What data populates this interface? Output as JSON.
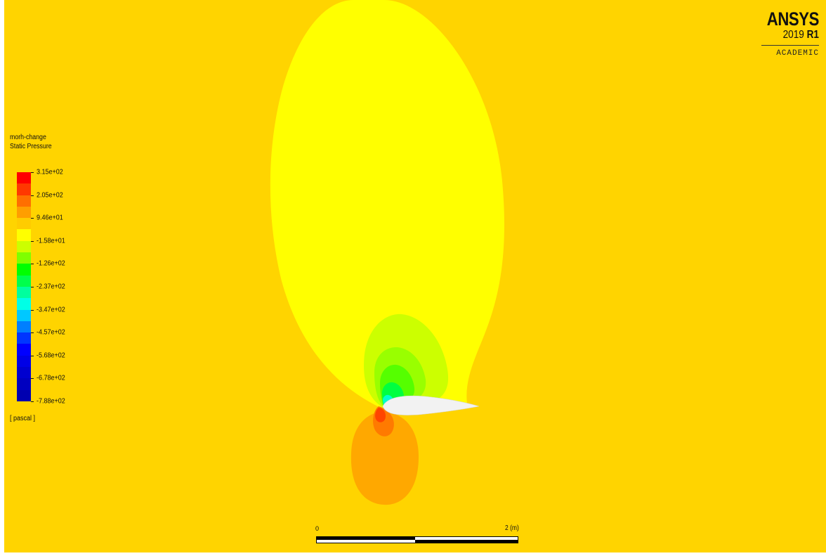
{
  "logo": {
    "brand": "ANSYS",
    "version_year": "2019",
    "version_release": "R1",
    "edition": "ACADEMIC"
  },
  "legend": {
    "case_name": "morh-change",
    "variable": "Static Pressure",
    "unit": "[ pascal ]",
    "labels": [
      "3.15e+02",
      "2.05e+02",
      "9.46e+01",
      "-1.58e+01",
      "-1.26e+02",
      "-2.37e+02",
      "-3.47e+02",
      "-4.57e+02",
      "-5.68e+02",
      "-6.78e+02",
      "-7.88e+02"
    ],
    "colors": [
      "#ff0000",
      "#ff3800",
      "#ff6f00",
      "#ff9e00",
      "#ffcc00",
      "#ffff00",
      "#ccff00",
      "#7fff00",
      "#00ff00",
      "#00ff4c",
      "#00ff9e",
      "#00ffe6",
      "#00c8ff",
      "#007fff",
      "#0036ff",
      "#0000ff",
      "#0000e6",
      "#0000d0",
      "#0000c0",
      "#0000b0"
    ]
  },
  "scale": {
    "zero_label": "0",
    "max_label": "2 (m)"
  },
  "contour_colors": {
    "background": "#ffd400",
    "upper_lobe": "#ffff00",
    "lower_lobe": "#ffa800",
    "suction_1": "#ccff00",
    "suction_2": "#99ff00",
    "suction_3": "#55ff00",
    "suction_4": "#00ff40",
    "suction_5": "#00ffcc",
    "stagnation": "#ff4400",
    "airfoil": "#f2f2f2"
  }
}
